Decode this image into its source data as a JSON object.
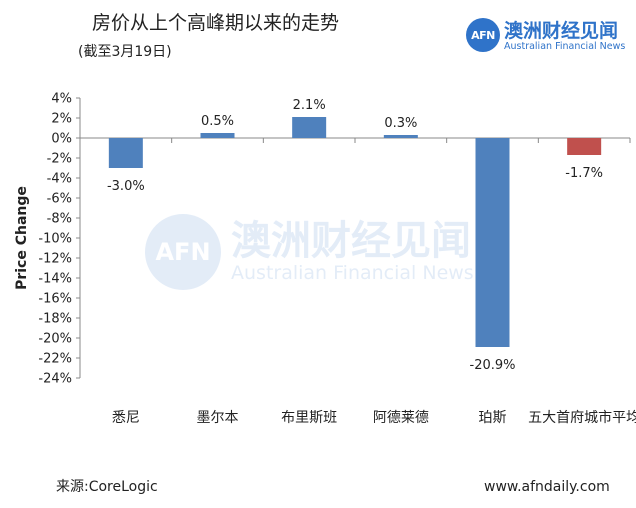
{
  "header": {
    "title": "房价从上个高峰期以来的走势",
    "subtitle": "(截至3月19日)"
  },
  "brand": {
    "badge": "AFN",
    "name_cn": "澳洲财经见闻",
    "name_en": "Australian Financial News",
    "color": "#2f73c9"
  },
  "footer": {
    "source": "来源:CoreLogic",
    "website": "www.afndaily.com"
  },
  "chart_data": {
    "type": "bar",
    "title": "",
    "xlabel": "",
    "ylabel": "Price Change",
    "ylim": [
      -24,
      4
    ],
    "yticks": [
      4,
      2,
      0,
      -2,
      -4,
      -6,
      -8,
      -10,
      -12,
      -14,
      -16,
      -18,
      -20,
      -22,
      -24
    ],
    "ytick_labels": [
      "4%",
      "2%",
      "0%",
      "-2%",
      "-4%",
      "-6%",
      "-8%",
      "-10%",
      "-12%",
      "-14%",
      "-16%",
      "-18%",
      "-20%",
      "-22%",
      "-24%"
    ],
    "grid": false,
    "categories": [
      "悉尼",
      "墨尔本",
      "布里斯班",
      "阿德莱德",
      "珀斯",
      "五大首府城市平均"
    ],
    "values": [
      -3.0,
      0.5,
      2.1,
      0.3,
      -20.9,
      -1.7
    ],
    "data_labels": [
      "-3.0%",
      "0.5%",
      "2.1%",
      "0.3%",
      "-20.9%",
      "-1.7%"
    ],
    "colors": [
      "#4f81bd",
      "#4f81bd",
      "#4f81bd",
      "#4f81bd",
      "#4f81bd",
      "#c0504d"
    ]
  }
}
